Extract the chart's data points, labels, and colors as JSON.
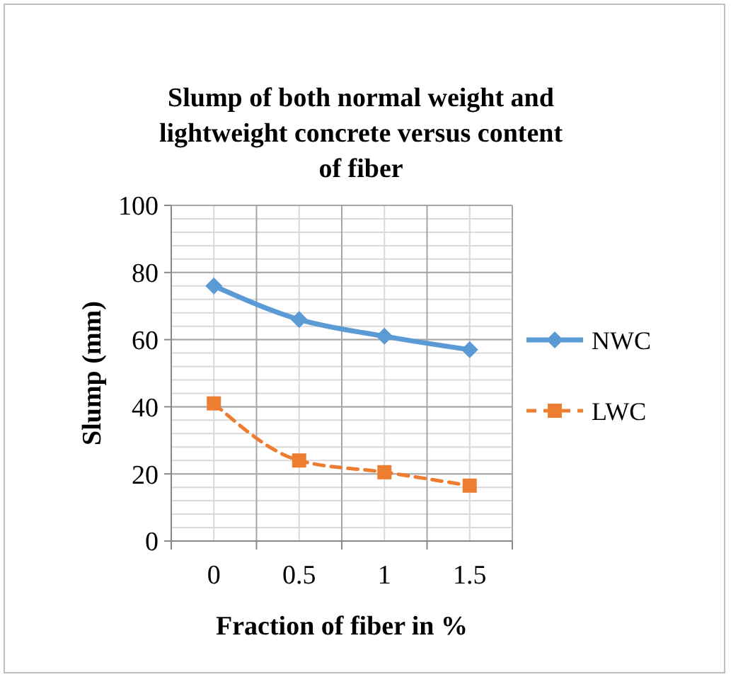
{
  "chart_data": {
    "type": "line",
    "title": "Slump  of both normal  weight and lightweight  concrete versus content of fiber",
    "xlabel": "Fraction of fiber in %",
    "ylabel": "Slump (mm)",
    "categories": [
      "0",
      "0.5",
      "1",
      "1.5"
    ],
    "series": [
      {
        "name": "NWC",
        "color": "#5b9bd5",
        "values": [
          76,
          66,
          61,
          57
        ],
        "marker": "diamond",
        "line_style": "solid"
      },
      {
        "name": "LWC",
        "color": "#ed7d31",
        "values": [
          41,
          24,
          20.5,
          16.5
        ],
        "marker": "square",
        "line_style": "dashed"
      }
    ],
    "ylim": [
      0,
      100
    ],
    "yticks": [
      0,
      20,
      40,
      60,
      80,
      100
    ],
    "grid": true,
    "legend": "right"
  }
}
